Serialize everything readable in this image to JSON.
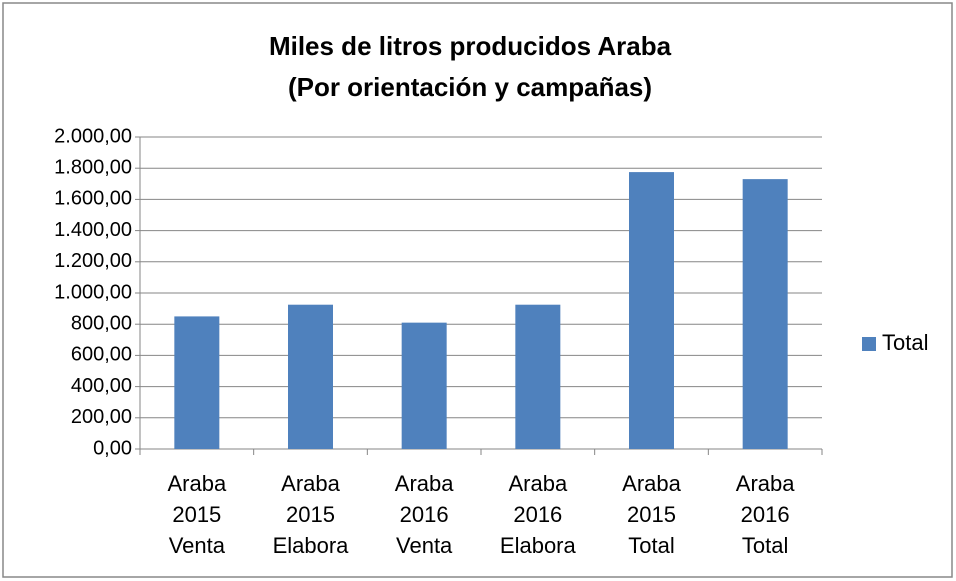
{
  "chart_data": {
    "type": "bar",
    "title": "Miles de litros producidos  Araba",
    "subtitle": "(Por orientación y campañas)",
    "categories": [
      "Araba 2015 Venta",
      "Araba 2015 Elabora",
      "Araba 2016 Venta",
      "Araba 2016 Elabora",
      "Araba 2015 Total",
      "Araba 2016 Total"
    ],
    "series": [
      {
        "name": "Total",
        "color": "#4f81bd",
        "values": [
          850,
          925,
          810,
          925,
          1775,
          1730
        ]
      }
    ],
    "ylim": [
      0,
      2000
    ],
    "yticks": [
      {
        "value": 0,
        "label": "0,00"
      },
      {
        "value": 200,
        "label": "200,00"
      },
      {
        "value": 400,
        "label": "400,00"
      },
      {
        "value": 600,
        "label": "600,00"
      },
      {
        "value": 800,
        "label": "800,00"
      },
      {
        "value": 1000,
        "label": "1.000,00"
      },
      {
        "value": 1200,
        "label": "1.200,00"
      },
      {
        "value": 1400,
        "label": "1.400,00"
      },
      {
        "value": 1600,
        "label": "1.600,00"
      },
      {
        "value": 1800,
        "label": "1.800,00"
      },
      {
        "value": 2000,
        "label": "2.000,00"
      }
    ],
    "grid": true,
    "legend": "right"
  }
}
